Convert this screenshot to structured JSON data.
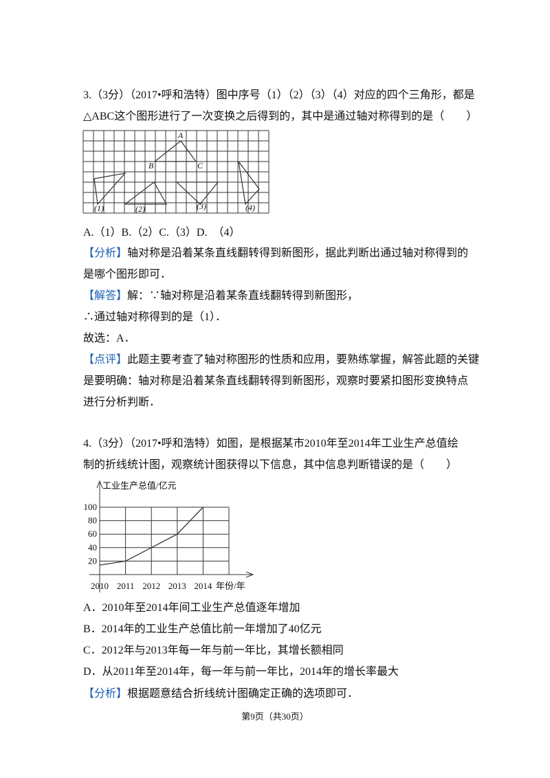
{
  "q3": {
    "stem": [
      "3.（3分）（2017•呼和浩特）图中序号（1）（2）（3）（4）对应的四个三角形，都是",
      "△ABC这个图形进行了一次变换之后得到的，其中是通过轴对称得到的是（　　）"
    ],
    "figure": {
      "labels": [
        "A",
        "B",
        "C",
        "(1)",
        "(2)",
        "(3)",
        "(4)"
      ]
    },
    "options": "A.（1）B.（2）C.（3）D.　（4）",
    "analysis": {
      "tag": "【分析】",
      "lines": [
        "轴对称是沿着某条直线翻转得到新图形，据此判断出通过轴对称得到的",
        "是哪个图形即可．"
      ]
    },
    "solution": {
      "tag": "【解答】",
      "lines": [
        "解：∵轴对称是沿着某条直线翻转得到新图形，",
        "∴通过轴对称得到的是（1）．",
        "故选：A．"
      ]
    },
    "comment": {
      "tag": "【点评】",
      "lines": [
        "此题主要考查了轴对称图形的性质和应用，要熟练掌握，解答此题的关键",
        "是要明确：轴对称是沿着某条直线翻转得到新图形，观察时要紧扣图形变换特点",
        "进行分析判断．"
      ]
    }
  },
  "q4": {
    "stem": [
      "4.（3分）（2017•呼和浩特）如图，是根据某市2010年至2014年工业生产总值绘",
      "制的折线统计图，观察统计图获得以下信息，其中信息判断错误的是（　　）"
    ],
    "chart": {
      "type": "line",
      "y_label": "工业生产总值/亿元",
      "x_label": "年份/年",
      "x": [
        2010,
        2011,
        2012,
        2013,
        2014
      ],
      "values": [
        14,
        20,
        40,
        60,
        100
      ],
      "xlim": [
        2010,
        2015
      ],
      "xticks": [
        2010,
        2011,
        2012,
        2013,
        2014
      ],
      "ylim": [
        0,
        100
      ],
      "yticks": [
        20,
        40,
        60,
        80,
        100
      ],
      "grid": true,
      "color": "#333333"
    },
    "options": [
      "A．2010年至2014年间工业生产总值逐年增加",
      "B．2014年的工业生产总值比前一年增加了40亿元",
      "C．2012年与2013年每一年与前一年比，其增长额相同",
      "D．从2011年至2014年，每一年与前一年比，2014年的增长率最大"
    ],
    "analysis": {
      "tag": "【分析】",
      "lines": [
        "根据题意结合折线统计图确定正确的选项即可．"
      ]
    }
  },
  "footer": "第9页（共30页）"
}
